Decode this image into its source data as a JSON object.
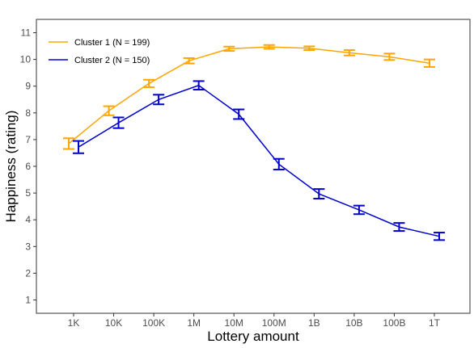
{
  "chart_data": {
    "type": "line",
    "xlabel": "Lottery amount",
    "ylabel": "Happiness (rating)",
    "categories": [
      "1K",
      "10K",
      "100K",
      "1M",
      "10M",
      "100M",
      "1B",
      "10B",
      "100B",
      "1T"
    ],
    "ylim": [
      0.5,
      11.5
    ],
    "yticks": [
      1,
      2,
      3,
      4,
      5,
      6,
      7,
      8,
      9,
      10,
      11
    ],
    "grid": false,
    "legend_position": "top-left",
    "series": [
      {
        "name": "Cluster 1 (N = 199)",
        "color": "#FFA500",
        "values": [
          6.85,
          8.08,
          9.1,
          9.95,
          10.4,
          10.47,
          10.42,
          10.25,
          10.1,
          9.86
        ],
        "errors": [
          0.2,
          0.17,
          0.14,
          0.1,
          0.08,
          0.07,
          0.07,
          0.1,
          0.12,
          0.14
        ]
      },
      {
        "name": "Cluster 2 (N = 150)",
        "color": "#0000CD",
        "values": [
          6.72,
          7.63,
          8.5,
          9.03,
          7.95,
          6.08,
          4.97,
          4.37,
          3.73,
          3.38
        ],
        "errors": [
          0.23,
          0.2,
          0.18,
          0.16,
          0.18,
          0.2,
          0.18,
          0.16,
          0.15,
          0.14
        ]
      }
    ]
  }
}
